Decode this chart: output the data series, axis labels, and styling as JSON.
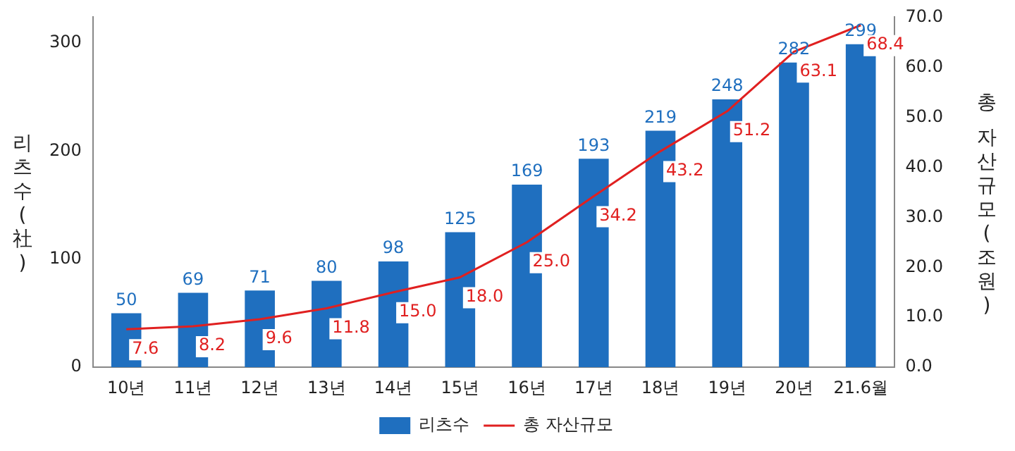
{
  "chart_data": {
    "type": "bar",
    "ylabel": "리츠수(社)",
    "y2label": "총 자산규모(조원)",
    "categories": [
      "10년",
      "11년",
      "12년",
      "13년",
      "14년",
      "15년",
      "16년",
      "17년",
      "18년",
      "19년",
      "20년",
      "21.6월"
    ],
    "series": [
      {
        "name": "리츠수",
        "color": "#1f6fbf",
        "values": [
          50,
          69,
          71,
          80,
          98,
          125,
          169,
          193,
          219,
          248,
          282,
          299
        ],
        "value_labels": [
          "50",
          "69",
          "71",
          "80",
          "98",
          "125",
          "169",
          "193",
          "219",
          "248",
          "282",
          "299"
        ]
      },
      {
        "name": "총 자산규모",
        "type": "line",
        "axis": "y2",
        "color": "#e02020",
        "values": [
          7.6,
          8.2,
          9.6,
          11.8,
          15.0,
          18.0,
          25.0,
          34.2,
          43.2,
          51.2,
          63.1,
          68.4
        ],
        "value_labels": [
          "7.6",
          "8.2",
          "9.6",
          "11.8",
          "15.0",
          "18.0",
          "25.0",
          "34.2",
          "43.2",
          "51.2",
          "63.1",
          "68.4"
        ]
      }
    ],
    "ylim": [
      0,
      324
    ],
    "yticks": [
      0,
      100,
      200,
      300
    ],
    "y2lim": [
      0,
      70
    ],
    "y2ticks": [
      {
        "value": 0,
        "label": "0.0"
      },
      {
        "value": 10,
        "label": "10.0"
      },
      {
        "value": 20,
        "label": "20.0"
      },
      {
        "value": 30,
        "label": "30.0"
      },
      {
        "value": 40,
        "label": "40.0"
      },
      {
        "value": 50,
        "label": "50.0"
      },
      {
        "value": 60,
        "label": "60.0"
      },
      {
        "value": 70,
        "label": "70.0"
      }
    ],
    "grid": false,
    "legend": "bottom",
    "marker": "none",
    "line_style": "solid"
  }
}
